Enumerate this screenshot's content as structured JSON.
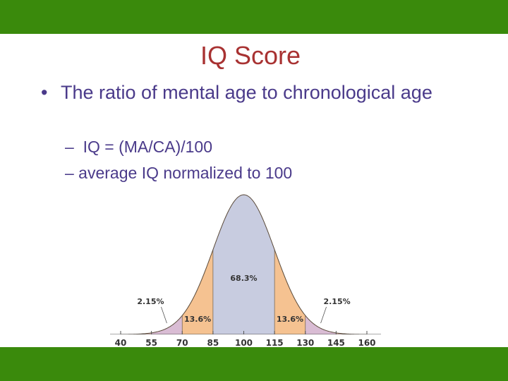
{
  "slide": {
    "title": "IQ Score",
    "bullet_marker": "•",
    "bullet": "The ratio of mental age to chronological age",
    "sub_items": [
      "–  IQ = (MA/CA)/100",
      "– average IQ normalized to 100"
    ],
    "colors": {
      "bar": "#3a8a0c",
      "title": "#a83232",
      "text": "#4a3a8a"
    }
  },
  "chart_data": {
    "type": "area",
    "title": "",
    "xlabel": "",
    "ylabel": "",
    "x_ticks": [
      "40",
      "55",
      "70",
      "85",
      "100",
      "115",
      "130",
      "145",
      "160"
    ],
    "mean": 100,
    "sd": 15,
    "xlim": [
      40,
      160
    ],
    "regions": [
      {
        "from": 85,
        "to": 115,
        "label": "68.3%",
        "color": "#c8cce0"
      },
      {
        "from": 70,
        "to": 85,
        "label": "13.6%",
        "color": "#f5c291"
      },
      {
        "from": 115,
        "to": 130,
        "label": "13.6%",
        "color": "#f5c291"
      },
      {
        "from": 55,
        "to": 70,
        "label": "2.15%",
        "color": "#d9bcd4"
      },
      {
        "from": 130,
        "to": 145,
        "label": "2.15%",
        "color": "#d9bcd4"
      },
      {
        "from": 40,
        "to": 55,
        "label": "",
        "color": "#f2c9c4"
      },
      {
        "from": 145,
        "to": 160,
        "label": "",
        "color": "#f2c9c4"
      }
    ]
  }
}
